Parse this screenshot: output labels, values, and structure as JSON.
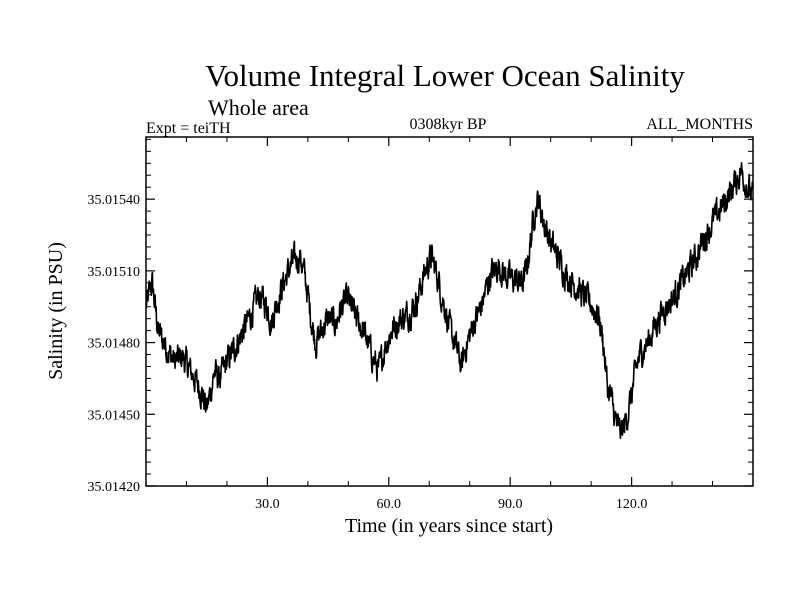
{
  "chart_data": {
    "type": "line",
    "title": "Volume Integral Lower Ocean Salinity",
    "subtitle": "Whole area",
    "experiment_label": "Expt = teiTH",
    "period_label": "0308kyr BP",
    "months_label": "ALL_MONTHS",
    "xlabel": "Time (in years since start)",
    "ylabel": "Salinity (in PSU)",
    "xlim": [
      0,
      150
    ],
    "ylim": [
      35.0142,
      35.01566
    ],
    "x_ticks": [
      30,
      60,
      90,
      120
    ],
    "x_tick_labels": [
      "30.0",
      "60.0",
      "90.0",
      "120.0"
    ],
    "y_ticks": [
      35.0142,
      35.0145,
      35.0148,
      35.0151,
      35.0154
    ],
    "y_tick_labels": [
      "35.01420",
      "35.01450",
      "35.01480",
      "35.01510",
      "35.01540"
    ],
    "grid": false,
    "series": [
      {
        "name": "Salinity",
        "color": "#000000",
        "anchors": [
          [
            0,
            35.01495
          ],
          [
            1.5,
            35.01505
          ],
          [
            3,
            35.01485
          ],
          [
            5,
            35.01478
          ],
          [
            7,
            35.01472
          ],
          [
            9,
            35.01474
          ],
          [
            11,
            35.01468
          ],
          [
            13,
            35.01462
          ],
          [
            14,
            35.01458
          ],
          [
            15,
            35.01452
          ],
          [
            16,
            35.0146
          ],
          [
            17,
            35.01468
          ],
          [
            18,
            35.01464
          ],
          [
            20,
            35.01472
          ],
          [
            22,
            35.01478
          ],
          [
            24,
            35.01485
          ],
          [
            26,
            35.01492
          ],
          [
            28,
            35.015
          ],
          [
            30,
            35.01495
          ],
          [
            31,
            35.01488
          ],
          [
            32,
            35.01495
          ],
          [
            34,
            35.01505
          ],
          [
            36,
            35.01513
          ],
          [
            38,
            35.01516
          ],
          [
            39,
            35.0151
          ],
          [
            40,
            35.015
          ],
          [
            41,
            35.01488
          ],
          [
            42,
            35.0148
          ],
          [
            43,
            35.01484
          ],
          [
            45,
            35.0149
          ],
          [
            47,
            35.01488
          ],
          [
            48,
            35.01494
          ],
          [
            50,
            35.01498
          ],
          [
            52,
            35.0149
          ],
          [
            54,
            35.01484
          ],
          [
            56,
            35.01474
          ],
          [
            57.5,
            35.01468
          ],
          [
            59,
            35.01478
          ],
          [
            61,
            35.01486
          ],
          [
            63,
            35.0149
          ],
          [
            65,
            35.01492
          ],
          [
            67,
            35.01498
          ],
          [
            69,
            35.0151
          ],
          [
            70.5,
            35.01516
          ],
          [
            72,
            35.01508
          ],
          [
            73,
            35.015
          ],
          [
            74,
            35.01494
          ],
          [
            75,
            35.01486
          ],
          [
            77,
            35.01476
          ],
          [
            78,
            35.0147
          ],
          [
            79,
            35.01478
          ],
          [
            81,
            35.01488
          ],
          [
            83,
            35.01496
          ],
          [
            85,
            35.01508
          ],
          [
            87,
            35.01512
          ],
          [
            89,
            35.01508
          ],
          [
            91,
            35.01506
          ],
          [
            93,
            35.01505
          ],
          [
            94,
            35.0151
          ],
          [
            95,
            35.01522
          ],
          [
            96,
            35.01535
          ],
          [
            97,
            35.0154
          ],
          [
            98,
            35.01532
          ],
          [
            100,
            35.01522
          ],
          [
            102,
            35.01515
          ],
          [
            104,
            35.01508
          ],
          [
            106,
            35.01504
          ],
          [
            108,
            35.015
          ],
          [
            110,
            35.01496
          ],
          [
            112,
            35.0149
          ],
          [
            113,
            35.0148
          ],
          [
            114,
            35.01462
          ],
          [
            115,
            35.01456
          ],
          [
            116,
            35.01448
          ],
          [
            117,
            35.01443
          ],
          [
            118,
            35.01444
          ],
          [
            119,
            35.0145
          ],
          [
            120,
            35.01458
          ],
          [
            121,
            35.01468
          ],
          [
            122,
            35.01475
          ],
          [
            124,
            35.0148
          ],
          [
            126,
            35.01488
          ],
          [
            128,
            35.01494
          ],
          [
            130,
            35.01498
          ],
          [
            132,
            35.01504
          ],
          [
            134,
            35.0151
          ],
          [
            136,
            35.01516
          ],
          [
            138,
            35.01524
          ],
          [
            140,
            35.0153
          ],
          [
            142,
            35.01536
          ],
          [
            144,
            35.01542
          ],
          [
            146,
            35.01548
          ],
          [
            147,
            35.01552
          ],
          [
            148,
            35.01548
          ],
          [
            149,
            35.01544
          ],
          [
            150,
            35.0154
          ]
        ]
      }
    ]
  }
}
